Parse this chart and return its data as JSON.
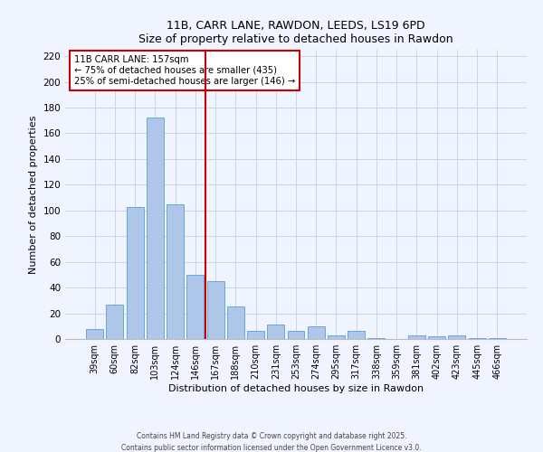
{
  "title": "11B, CARR LANE, RAWDON, LEEDS, LS19 6PD",
  "subtitle": "Size of property relative to detached houses in Rawdon",
  "xlabel": "Distribution of detached houses by size in Rawdon",
  "ylabel": "Number of detached properties",
  "bar_labels": [
    "39sqm",
    "60sqm",
    "82sqm",
    "103sqm",
    "124sqm",
    "146sqm",
    "167sqm",
    "188sqm",
    "210sqm",
    "231sqm",
    "253sqm",
    "274sqm",
    "295sqm",
    "317sqm",
    "338sqm",
    "359sqm",
    "381sqm",
    "402sqm",
    "423sqm",
    "445sqm",
    "466sqm"
  ],
  "bar_values": [
    8,
    27,
    103,
    172,
    105,
    50,
    45,
    25,
    6,
    11,
    6,
    10,
    3,
    6,
    1,
    0,
    3,
    2,
    3,
    1,
    1
  ],
  "bar_color": "#aec6e8",
  "bar_edge_color": "#5a9fd4",
  "vline_x": 5.5,
  "vline_color": "#cc0000",
  "annotation_title": "11B CARR LANE: 157sqm",
  "annotation_line1": "← 75% of detached houses are smaller (435)",
  "annotation_line2": "25% of semi-detached houses are larger (146) →",
  "annotation_box_color": "#ffffff",
  "annotation_box_edge": "#cc0000",
  "ylim": [
    0,
    225
  ],
  "yticks": [
    0,
    20,
    40,
    60,
    80,
    100,
    120,
    140,
    160,
    180,
    200,
    220
  ],
  "footer1": "Contains HM Land Registry data © Crown copyright and database right 2025.",
  "footer2": "Contains public sector information licensed under the Open Government Licence v3.0.",
  "bg_color": "#f0f4ff",
  "grid_color": "#c8d4ee"
}
